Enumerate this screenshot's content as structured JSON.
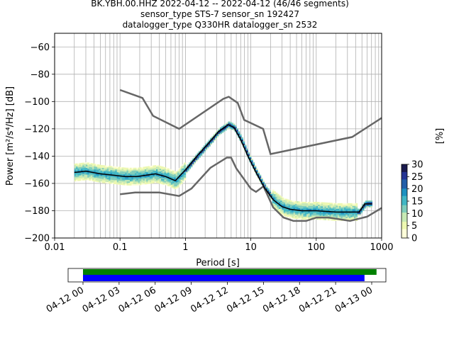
{
  "title_lines": [
    "BK.YBH.00.HHZ   2022-04-12 -- 2022-04-12  (46/46 segments)",
    "sensor_type STS-7 sensor_sn 192427",
    "datalogger_type Q330HR datalogger_sn 2532"
  ],
  "chart_data": {
    "type": "heatmap",
    "xlabel": "Period [s]",
    "ylabel": "Power [m²/s⁴/Hz] [dB]",
    "x_scale": "log",
    "xlim": [
      0.01,
      1000
    ],
    "ylim": [
      -200,
      -50
    ],
    "x_ticks": [
      0.01,
      0.1,
      1,
      10,
      100,
      1000
    ],
    "x_tick_labels": [
      "0.01",
      "0.1",
      "1",
      "10",
      "100",
      "1000"
    ],
    "y_ticks": [
      -200,
      -180,
      -160,
      -140,
      -120,
      -100,
      -80,
      -60
    ],
    "y_tick_labels": [
      "−200",
      "−180",
      "−160",
      "−140",
      "−120",
      "−100",
      "−80",
      "−60"
    ],
    "grid": true,
    "noise_models": {
      "high": {
        "period": [
          0.1,
          0.22,
          0.32,
          0.8,
          3.8,
          4.6,
          6.3,
          7.9,
          15.4,
          20,
          354.8,
          1000
        ],
        "power": [
          -91.5,
          -97.4,
          -110.5,
          -120,
          -98,
          -96.5,
          -101,
          -113.5,
          -120,
          -138.5,
          -126,
          -112
        ]
      },
      "low": {
        "period": [
          0.1,
          0.17,
          0.4,
          0.8,
          1.24,
          2.4,
          4.3,
          5.0,
          6.0,
          10,
          12,
          15.6,
          21.9,
          31.6,
          45,
          70,
          101,
          154,
          328,
          600,
          1000
        ],
        "power": [
          -168,
          -166.7,
          -166.7,
          -169.2,
          -163.7,
          -148.6,
          -141.1,
          -141.1,
          -149,
          -163.8,
          -166.2,
          -162.1,
          -177.5,
          -185,
          -187.5,
          -187.5,
          -185,
          -185,
          -187.5,
          -184.4,
          -178
        ]
      }
    },
    "mean_psd": {
      "period": [
        0.02,
        0.03,
        0.05,
        0.08,
        0.12,
        0.18,
        0.25,
        0.35,
        0.5,
        0.7,
        1.0,
        1.5,
        2.2,
        3.2,
        4.5,
        5.5,
        7.0,
        9.0,
        12,
        16,
        22,
        30,
        40,
        60,
        100,
        200,
        450,
        550,
        700
      ],
      "power": [
        -152,
        -151,
        -153,
        -154,
        -155,
        -155,
        -154,
        -153,
        -155,
        -158,
        -150,
        -140,
        -131,
        -122,
        -117,
        -119,
        -128,
        -140,
        -152,
        -163,
        -172,
        -177,
        -179,
        -180,
        -180,
        -181,
        -181,
        -175,
        -175
      ]
    },
    "colorbar": {
      "label": "[%]",
      "range": [
        0,
        30
      ],
      "ticks": [
        0,
        5,
        10,
        15,
        20,
        25,
        30
      ],
      "tick_labels": [
        "0",
        "5",
        "10",
        "15",
        "20",
        "25",
        "30"
      ]
    },
    "timeline": {
      "tick_labels": [
        "04-12 00",
        "04-12 03",
        "04-12 06",
        "04-12 09",
        "04-12 12",
        "04-12 15",
        "04-12 18",
        "04-12 21",
        "04-13 00"
      ],
      "green_coverage_hours": [
        0,
        24.4
      ],
      "blue_coverage_hours": [
        0,
        23.4
      ],
      "colors": {
        "green": "#008000",
        "blue": "#0000ff"
      }
    }
  },
  "colors": {
    "noise_model": "#666666",
    "mean": "#000000",
    "grid": "#b0b0b0"
  }
}
